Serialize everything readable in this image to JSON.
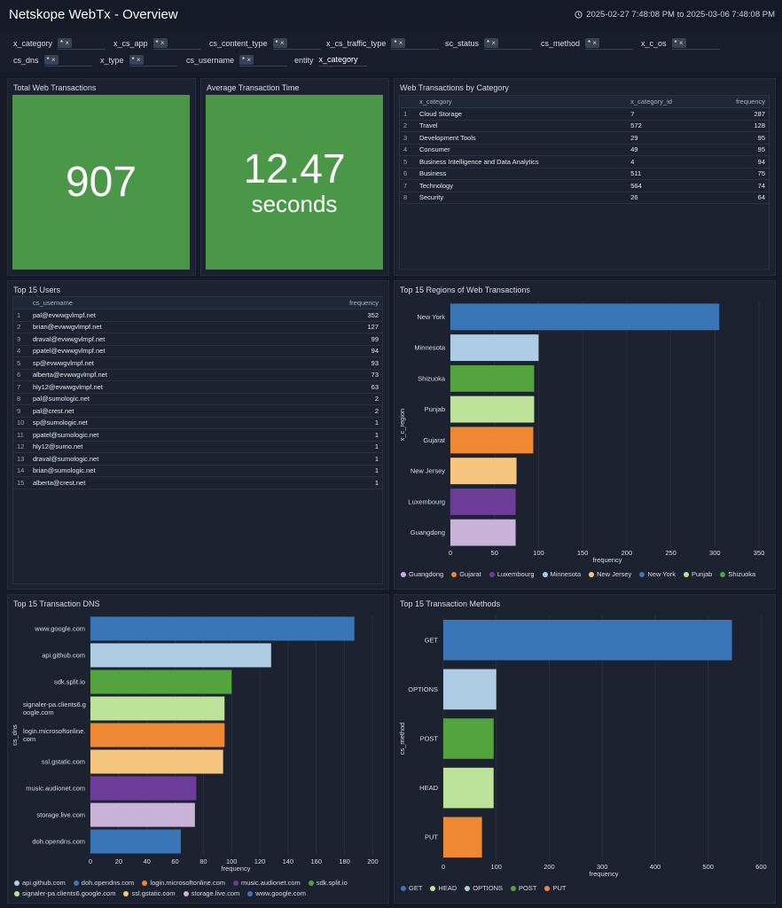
{
  "header": {
    "title": "Netskope WebTx - Overview",
    "time_range": "2025-02-27 7:48:08 PM to 2025-03-06 7:48:08 PM"
  },
  "filters": [
    {
      "label": "x_category",
      "value": "*"
    },
    {
      "label": "x_cs_app",
      "value": "*"
    },
    {
      "label": "cs_content_type",
      "value": "*"
    },
    {
      "label": "x_cs_traffic_type",
      "value": "*"
    },
    {
      "label": "sc_status",
      "value": "*"
    },
    {
      "label": "cs_method",
      "value": "*"
    },
    {
      "label": "x_c_os",
      "value": "*"
    },
    {
      "label": "cs_dns",
      "value": "*"
    },
    {
      "label": "x_type",
      "value": "*"
    },
    {
      "label": "cs_username",
      "value": "*"
    },
    {
      "label": "entity",
      "value": "x_category"
    }
  ],
  "panels": {
    "total": {
      "title": "Total Web Transactions",
      "value": 907
    },
    "average": {
      "title": "Average Transaction Time",
      "value": 12.47,
      "unit": "seconds"
    },
    "category_table": {
      "title": "Web Transactions by Category",
      "columns": [
        "x_category",
        "x_category_id",
        "frequency"
      ],
      "rows": [
        [
          1,
          "Cloud Storage",
          7,
          287
        ],
        [
          2,
          "Travel",
          572,
          128
        ],
        [
          3,
          "Development Tools",
          29,
          95
        ],
        [
          4,
          "Consumer",
          49,
          95
        ],
        [
          5,
          "Business Intelligence and Data Analytics",
          4,
          94
        ],
        [
          6,
          "Business",
          511,
          75
        ],
        [
          7,
          "Technology",
          564,
          74
        ],
        [
          8,
          "Security",
          26,
          64
        ]
      ]
    },
    "users_table": {
      "title": "Top 15 Users",
      "columns": [
        "cs_username",
        "frequency"
      ],
      "rows": [
        [
          1,
          "pal@evwwgvlmpf.net",
          352
        ],
        [
          2,
          "brian@evwwgvlmpf.net",
          127
        ],
        [
          3,
          "draval@evwwgvlmpf.net",
          99
        ],
        [
          4,
          "ppatel@evwwgvlmpf.net",
          94
        ],
        [
          5,
          "sp@evwwgvlmpf.net",
          93
        ],
        [
          6,
          "alberta@evwwgvlmpf.net",
          73
        ],
        [
          7,
          "hly12@evwwgvlmpf.net",
          63
        ],
        [
          8,
          "pal@sumologic.net",
          2
        ],
        [
          9,
          "pal@crest.net",
          2
        ],
        [
          10,
          "sp@sumologic.net",
          1
        ],
        [
          11,
          "ppatel@sumologic.net",
          1
        ],
        [
          12,
          "hly12@sumo.net",
          1
        ],
        [
          13,
          "draval@sumologic.net",
          1
        ],
        [
          14,
          "brian@sumologic.net",
          1
        ],
        [
          15,
          "alberta@crest.net",
          1
        ]
      ]
    }
  },
  "chart_data": [
    {
      "type": "bar",
      "title": "Top 15 Regions of Web Transactions",
      "categories": [
        "New York",
        "Minnesota",
        "Shizuoka",
        "Punjab",
        "Gujarat",
        "New Jersey",
        "Luxembourg",
        "Guangdong"
      ],
      "values": [
        305,
        100,
        95,
        95,
        94,
        75,
        74,
        74
      ],
      "colors": [
        "#3a75b8",
        "#aecde5",
        "#53a33f",
        "#bde39b",
        "#ee8833",
        "#f7c67e",
        "#6c3d99",
        "#c9b3d9"
      ],
      "legend": [
        "Guangdong",
        "Gujarat",
        "Luxembourg",
        "Minnesota",
        "New Jersey",
        "New York",
        "Punjab",
        "Shizuoka"
      ],
      "xlim": [
        0,
        356
      ],
      "xticks": [
        0,
        50,
        100,
        150,
        200,
        250,
        300,
        350
      ],
      "xlabel": "frequency",
      "ylabel": "x_c_region",
      "grid": true
    },
    {
      "type": "bar",
      "title": "Top 15 Transaction DNS",
      "categories": [
        "www.google.com",
        "api.github.com",
        "sdk.split.io",
        "signaler-pa.clients6.google.com",
        "login.microsoftonline.com",
        "ssl.gstatic.com",
        "music.audionet.com",
        "storage.live.com",
        "doh.opendns.com"
      ],
      "values": [
        187,
        128,
        100,
        95,
        95,
        94,
        75,
        74,
        64
      ],
      "colors": [
        "#3a75b8",
        "#aecde5",
        "#53a33f",
        "#bde39b",
        "#ee8833",
        "#f7c67e",
        "#6c3d99",
        "#c9b3d9",
        "#3a75b8"
      ],
      "legend": [
        "api.github.com",
        "doh.opendns.com",
        "login.microsoftonline.com",
        "music.audionet.com",
        "sdk.split.io",
        "signaler-pa.clients6.google.com",
        "ssl.gstatic.com",
        "storage.live.com",
        "www.google.com"
      ],
      "xlim": [
        0,
        206
      ],
      "xticks": [
        0,
        20,
        40,
        60,
        80,
        100,
        120,
        140,
        160,
        180,
        200
      ],
      "xlabel": "frequency",
      "ylabel": "cs_dns",
      "grid": true
    },
    {
      "type": "bar",
      "title": "Top 15 Transaction Methods",
      "categories": [
        "GET",
        "OPTIONS",
        "POST",
        "HEAD",
        "PUT"
      ],
      "values": [
        545,
        100,
        95,
        95,
        73
      ],
      "colors": [
        "#3a75b8",
        "#aecde5",
        "#53a33f",
        "#bde39b",
        "#ee8833"
      ],
      "legend": [
        "GET",
        "HEAD",
        "OPTIONS",
        "POST",
        "PUT"
      ],
      "xlim": [
        0,
        606
      ],
      "xticks": [
        0,
        100,
        200,
        300,
        400,
        500,
        600
      ],
      "xlabel": "frequency",
      "ylabel": "cs_method",
      "grid": true
    }
  ]
}
